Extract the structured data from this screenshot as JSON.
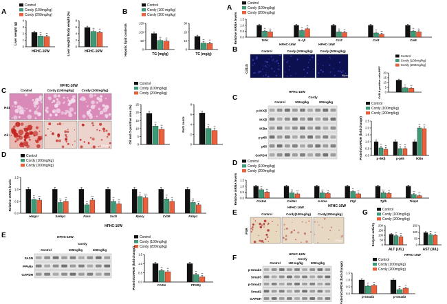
{
  "colors": {
    "control": "#111111",
    "cordy100": "#3d9a74",
    "cordy200": "#e8603c",
    "he_stain": "#d98ab8",
    "oil_red": "#c2231f",
    "f480_bg": "#0d1050",
    "blot_band": "#3a3a3a"
  },
  "legend": {
    "control": "Control",
    "cordy100": "Cordy (100mg/kg)",
    "cordy200": "Cordy (200mg/kg)",
    "cordy100_alt": "Cordy (100 mg/kg)",
    "cordy200_alt": "Cordy (200 mg/kg)"
  },
  "model": "HFHC-16W",
  "cordy": "Cordy",
  "sig": {
    "two": "**",
    "one": "*"
  },
  "doses": [
    "100mg/kg",
    "200mg/kg"
  ],
  "doses_e": [
    "100mg/kg",
    "200mg/kg"
  ],
  "doses_e2": [
    "100 mg/kg",
    "200mg/kg"
  ],
  "panel_left_A": {
    "letter": "A",
    "charts": [
      {
        "ylabel": "Liver weight (g)",
        "ticks": [
          "0",
          "1",
          "2",
          "3",
          "4"
        ],
        "ylim": [
          0,
          4
        ],
        "values": [
          2.2,
          1.65,
          1.55
        ]
      },
      {
        "ylabel": "Liver weight/ Body weight (%)",
        "ticks": [
          "0",
          "2",
          "4",
          "6",
          "8"
        ],
        "ylim": [
          0,
          8
        ],
        "values": [
          5.9,
          4.7,
          4.4
        ]
      }
    ]
  },
  "panel_B": {
    "letter": "B",
    "ylabel": "Hepatic lipid contents",
    "charts": [
      {
        "xlabel": "TG (mg/g)",
        "ticks": [
          "0",
          "50",
          "100",
          "150"
        ],
        "ylim": [
          0,
          150
        ],
        "values": [
          92,
          52,
          48
        ]
      },
      {
        "xlabel": "TC (mg/g)",
        "ticks": [
          "0",
          "10",
          "20",
          "30"
        ],
        "ylim": [
          0,
          30
        ],
        "values": [
          15,
          7.5,
          7
        ]
      }
    ]
  },
  "panel_C": {
    "letter": "C",
    "title": "HFHC-16W",
    "columns": [
      "Control",
      "Cordy (100mg/kg)",
      "Cordy (200mg/kg)"
    ],
    "rows": [
      "H&E",
      "Oil Red O"
    ],
    "scale": "100μm",
    "area_chart": {
      "ylabel": "Oil red O-positive area (%)",
      "ticks": [
        "0",
        "5",
        "10",
        "15",
        "20",
        "25"
      ],
      "ylim": [
        0,
        25
      ],
      "values": [
        19.5,
        11.5,
        9.5
      ]
    },
    "nas_chart": {
      "ylabel": "NAS score",
      "ticks": [
        "0",
        "2",
        "4",
        "6",
        "8"
      ],
      "ylim": [
        0,
        8
      ],
      "values": [
        6.3,
        3.2,
        2.8
      ]
    }
  },
  "panel_D_left": {
    "letter": "D",
    "ylabel": "Relative mRNA levels",
    "ticks": [
      "0.0",
      "0.5",
      "1.0",
      "1.5"
    ],
    "ylim": [
      0,
      1.5
    ],
    "genes": [
      "Hmgcr",
      "Srebp1",
      "Fasn",
      "Scd1",
      "Pparγ",
      "Cd36",
      "Fabp1"
    ],
    "values": [
      [
        1.0,
        0.58,
        0.55
      ],
      [
        1.0,
        0.45,
        0.5
      ],
      [
        1.0,
        0.35,
        0.55
      ],
      [
        1.0,
        0.5,
        0.4
      ],
      [
        1.0,
        0.7,
        0.65
      ],
      [
        1.0,
        0.6,
        0.5
      ],
      [
        1.0,
        0.45,
        0.35
      ]
    ]
  },
  "panel_E_left": {
    "letter": "E",
    "proteins": [
      "FASN",
      "PPARγ",
      "GAPDH"
    ],
    "chart": {
      "ylabel": "Protein/GAPDH (fold change)",
      "ticks": [
        "0.0",
        "0.5",
        "1.0",
        "1.5"
      ],
      "ylim": [
        0,
        1.5
      ],
      "categories": [
        "FASN",
        "PPARγ"
      ],
      "values": [
        [
          1.0,
          0.62,
          0.56
        ],
        [
          1.0,
          0.4,
          0.28
        ]
      ]
    }
  },
  "panel_right_A": {
    "letter": "A",
    "ylabel": "Relative mRNA levels",
    "ticks": [
      "0.0",
      "0.5",
      "1.0",
      "1.5"
    ],
    "ylim": [
      0,
      1.5
    ],
    "genes": [
      "Tnfα",
      "IL-1β",
      "Ccl2",
      "Col1",
      "Col6"
    ],
    "values": [
      [
        1.0,
        0.5,
        0.45
      ],
      [
        1.0,
        0.55,
        0.7
      ],
      [
        1.0,
        0.45,
        0.4
      ],
      [
        1.0,
        0.35,
        0.25
      ],
      [
        1.0,
        0.5,
        0.45
      ]
    ]
  },
  "panel_right_B": {
    "letter": "B",
    "title": "HFHC-16W",
    "columns": [
      "Control",
      "Cordy (100mg/kg)",
      "Cordy (200mg/kg)"
    ],
    "stain": "Cd11b",
    "scale": "50μm",
    "chart": {
      "ylabel": "Cd11b-positive cells/HPF",
      "ticks": [
        "0",
        "5",
        "10",
        "15",
        "20"
      ],
      "ylim": [
        0,
        20
      ],
      "values": [
        12.5,
        4.5,
        4.0
      ]
    }
  },
  "panel_right_C": {
    "letter": "C",
    "proteins": [
      "p-IKKβ",
      "IKKβ",
      "IKBα",
      "p-p65",
      "p65",
      "GAPDH"
    ],
    "chart": {
      "ylabel": "Protein/GAPDH (fold change)",
      "ticks": [
        "0.0",
        "0.5",
        "1.0",
        "1.5",
        "2.0",
        "2.5"
      ],
      "ylim": [
        0,
        2.5
      ],
      "categories": [
        "p-ikkβ",
        "p-p65",
        "IKBα"
      ],
      "values": [
        [
          1.0,
          0.55,
          0.45
        ],
        [
          1.0,
          0.5,
          0.5
        ],
        [
          1.0,
          2.0,
          1.95
        ]
      ]
    }
  },
  "panel_right_D": {
    "letter": "D",
    "ylabel": "Relative mRNA levels",
    "ticks": [
      "0.0",
      "0.5",
      "1.0",
      "1.5"
    ],
    "ylim": [
      0,
      1.5
    ],
    "genes": [
      "Col1a1",
      "Col3a1",
      "α-Sma",
      "Ctgf",
      "Tgfb",
      "Timp1"
    ],
    "values": [
      [
        1.0,
        0.7,
        0.5
      ],
      [
        1.0,
        0.45,
        0.35
      ],
      [
        1.0,
        0.45,
        0.4
      ],
      [
        1.0,
        0.55,
        0.35
      ],
      [
        1.0,
        0.45,
        0.4
      ],
      [
        1.0,
        0.3,
        0.2
      ]
    ]
  },
  "panel_right_E": {
    "letter": "E",
    "title": "HFHC-16W",
    "columns": [
      "Control",
      "Cordy(100mg/kg)",
      "Cordy(200mg/kg)"
    ],
    "stain": "PSR",
    "scale": "100μm"
  },
  "panel_right_F": {
    "letter": "F",
    "proteins": [
      "p-Smad3",
      "Smad3",
      "p-Smad2",
      "Smad2",
      "GAPDH"
    ],
    "chart": {
      "ylabel": "Protein/GAPDH (fold change)",
      "ticks": [
        "0.0",
        "0.5",
        "1.0",
        "1.5"
      ],
      "ylim": [
        0,
        1.5
      ],
      "categories": [
        "p-smad2",
        "p-smad3"
      ],
      "values": [
        [
          1.0,
          0.55,
          0.6
        ],
        [
          1.0,
          0.3,
          0.4
        ]
      ]
    }
  },
  "panel_right_G": {
    "letter": "G",
    "ylabel": "Enzyme activity",
    "charts": [
      {
        "xlabel": "ALT (U/L)",
        "ticks": [
          "0",
          "50",
          "100",
          "150",
          "200"
        ],
        "ylim": [
          0,
          200
        ],
        "values": [
          110,
          95,
          85
        ]
      },
      {
        "xlabel": "AST (U/L)",
        "ticks": [
          "0",
          "50",
          "100",
          "150"
        ],
        "ylim": [
          0,
          150
        ],
        "values": [
          95,
          80,
          75
        ]
      }
    ]
  }
}
